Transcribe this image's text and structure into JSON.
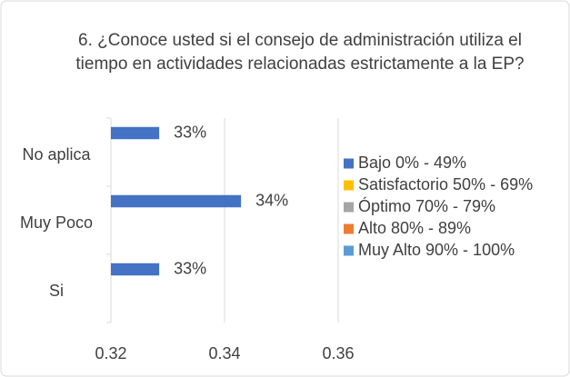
{
  "chart_data": {
    "type": "barh",
    "title": "6. ¿Conoce  usted  si el   consejo de administración utiliza el tiempo  en actividades relacionadas estrictamente a la EP?",
    "categories": [
      "No aplica",
      "Muy Poco",
      "Si"
    ],
    "series": [
      {
        "name": "Bajo 0% - 49%",
        "color": "#4472c4",
        "values": [
          0.3285,
          0.3429,
          0.3285
        ],
        "value_labels": [
          "33%",
          "34%",
          "33%"
        ]
      },
      {
        "name": "Satisfactorio 50% - 69%",
        "color": "#ffc000",
        "values": [
          null,
          null,
          null
        ]
      },
      {
        "name": "Óptimo 70% - 79%",
        "color": "#a5a5a5",
        "values": [
          null,
          null,
          null
        ]
      },
      {
        "name": "Alto 80% - 89%",
        "color": "#ed7d31",
        "values": [
          null,
          null,
          null
        ]
      },
      {
        "name": "Muy Alto 90% - 100%",
        "color": "#5b9bd5",
        "values": [
          null,
          null,
          null
        ]
      }
    ],
    "xlim": [
      0.32,
      0.36
    ],
    "xticks": [
      0.32,
      0.34,
      0.36
    ],
    "grid": true,
    "legend": "right"
  }
}
